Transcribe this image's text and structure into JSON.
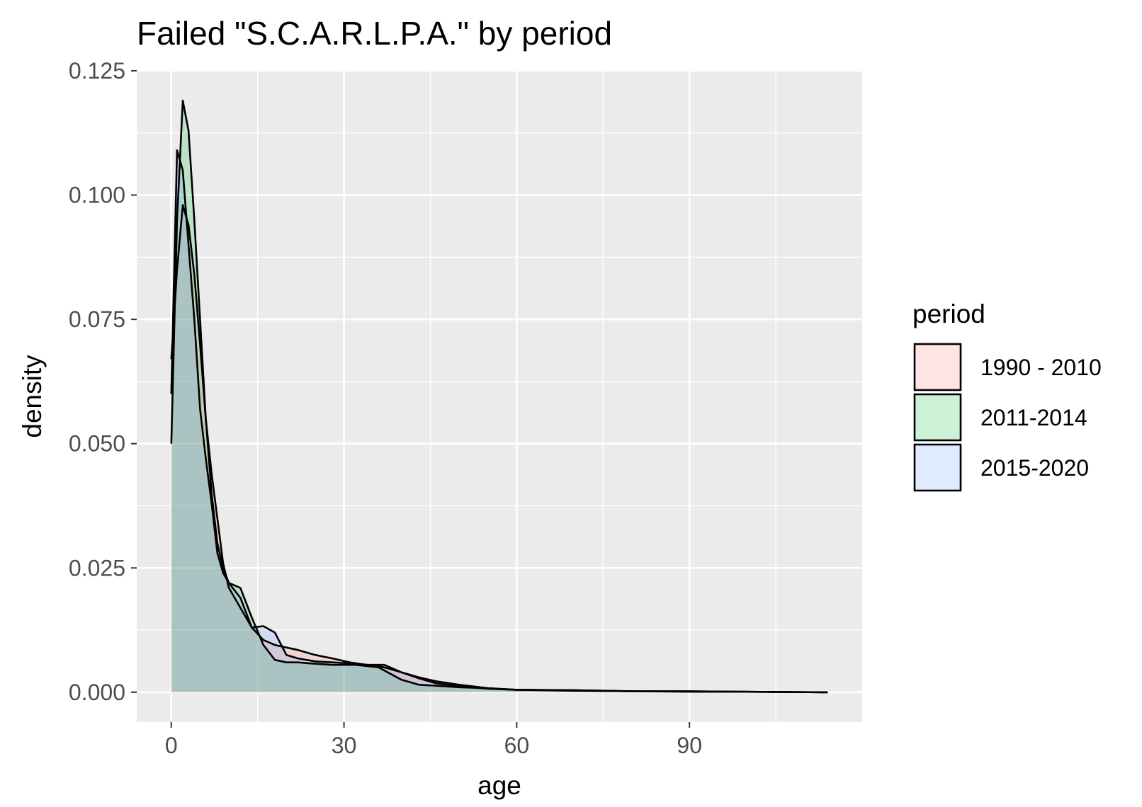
{
  "chart_data": {
    "type": "area",
    "title": "Failed \"S.C.A.R.L.P.A.\" by period",
    "xlabel": "age",
    "ylabel": "density",
    "xlim": [
      -6,
      120
    ],
    "ylim": [
      -0.006,
      0.125
    ],
    "x_ticks": [
      0,
      30,
      60,
      90
    ],
    "x_tick_labels": [
      "0",
      "30",
      "60",
      "90"
    ],
    "y_ticks": [
      0,
      0.025,
      0.05,
      0.075,
      0.1,
      0.125
    ],
    "y_tick_labels": [
      "0.000",
      "0.025",
      "0.050",
      "0.075",
      "0.100",
      "0.125"
    ],
    "grid": true,
    "legend": {
      "title": "period",
      "position": "right"
    },
    "series": [
      {
        "name": "1990 - 2010",
        "color": "#F8766D",
        "points": [
          [
            0,
            0.067
          ],
          [
            1,
            0.085
          ],
          [
            2,
            0.098
          ],
          [
            3,
            0.094
          ],
          [
            4,
            0.084
          ],
          [
            5,
            0.07
          ],
          [
            6,
            0.055
          ],
          [
            7,
            0.044
          ],
          [
            8,
            0.035
          ],
          [
            9,
            0.026
          ],
          [
            10,
            0.021
          ],
          [
            12,
            0.017
          ],
          [
            14,
            0.013
          ],
          [
            16,
            0.0105
          ],
          [
            18,
            0.0095
          ],
          [
            20,
            0.009
          ],
          [
            22,
            0.0085
          ],
          [
            25,
            0.0075
          ],
          [
            28,
            0.0068
          ],
          [
            31,
            0.006
          ],
          [
            34,
            0.0055
          ],
          [
            37,
            0.005
          ],
          [
            40,
            0.004
          ],
          [
            43,
            0.003
          ],
          [
            46,
            0.0022
          ],
          [
            50,
            0.0015
          ],
          [
            55,
            0.0008
          ],
          [
            60,
            0.0005
          ],
          [
            70,
            0.0004
          ],
          [
            80,
            0.0002
          ],
          [
            90,
            0.0002
          ],
          [
            100,
            0.0001
          ],
          [
            114,
            0
          ]
        ]
      },
      {
        "name": "2011-2014",
        "color": "#00BA38",
        "points": [
          [
            0,
            0.05
          ],
          [
            1,
            0.095
          ],
          [
            2,
            0.119
          ],
          [
            3,
            0.113
          ],
          [
            4,
            0.095
          ],
          [
            5,
            0.075
          ],
          [
            6,
            0.055
          ],
          [
            7,
            0.04
          ],
          [
            8,
            0.03
          ],
          [
            9,
            0.025
          ],
          [
            10,
            0.022
          ],
          [
            12,
            0.021
          ],
          [
            14,
            0.015
          ],
          [
            16,
            0.0095
          ],
          [
            18,
            0.0065
          ],
          [
            20,
            0.006
          ],
          [
            22,
            0.006
          ],
          [
            24,
            0.0058
          ],
          [
            28,
            0.0055
          ],
          [
            32,
            0.0055
          ],
          [
            36,
            0.005
          ],
          [
            40,
            0.0025
          ],
          [
            43,
            0.0015
          ],
          [
            46,
            0.0013
          ],
          [
            50,
            0.001
          ],
          [
            55,
            0.0008
          ],
          [
            60,
            0.0005
          ],
          [
            70,
            0.0003
          ],
          [
            80,
            0.0002
          ],
          [
            90,
            0.0001
          ],
          [
            100,
            0.0001
          ],
          [
            114,
            0
          ]
        ]
      },
      {
        "name": "2015-2020",
        "color": "#619CFF",
        "points": [
          [
            0,
            0.06
          ],
          [
            1,
            0.109
          ],
          [
            2,
            0.105
          ],
          [
            3,
            0.09
          ],
          [
            4,
            0.075
          ],
          [
            5,
            0.057
          ],
          [
            6,
            0.047
          ],
          [
            7,
            0.038
          ],
          [
            8,
            0.028
          ],
          [
            9,
            0.024
          ],
          [
            10,
            0.022
          ],
          [
            12,
            0.019
          ],
          [
            14,
            0.013
          ],
          [
            16,
            0.0133
          ],
          [
            18,
            0.012
          ],
          [
            20,
            0.0075
          ],
          [
            22,
            0.0068
          ],
          [
            25,
            0.0062
          ],
          [
            28,
            0.006
          ],
          [
            31,
            0.0058
          ],
          [
            34,
            0.0055
          ],
          [
            37,
            0.0055
          ],
          [
            40,
            0.004
          ],
          [
            43,
            0.0028
          ],
          [
            46,
            0.0018
          ],
          [
            50,
            0.0012
          ],
          [
            55,
            0.0007
          ],
          [
            60,
            0.0005
          ],
          [
            70,
            0.0004
          ],
          [
            80,
            0.0002
          ],
          [
            90,
            0.0002
          ],
          [
            100,
            0.0001
          ],
          [
            114,
            0
          ]
        ]
      }
    ]
  }
}
